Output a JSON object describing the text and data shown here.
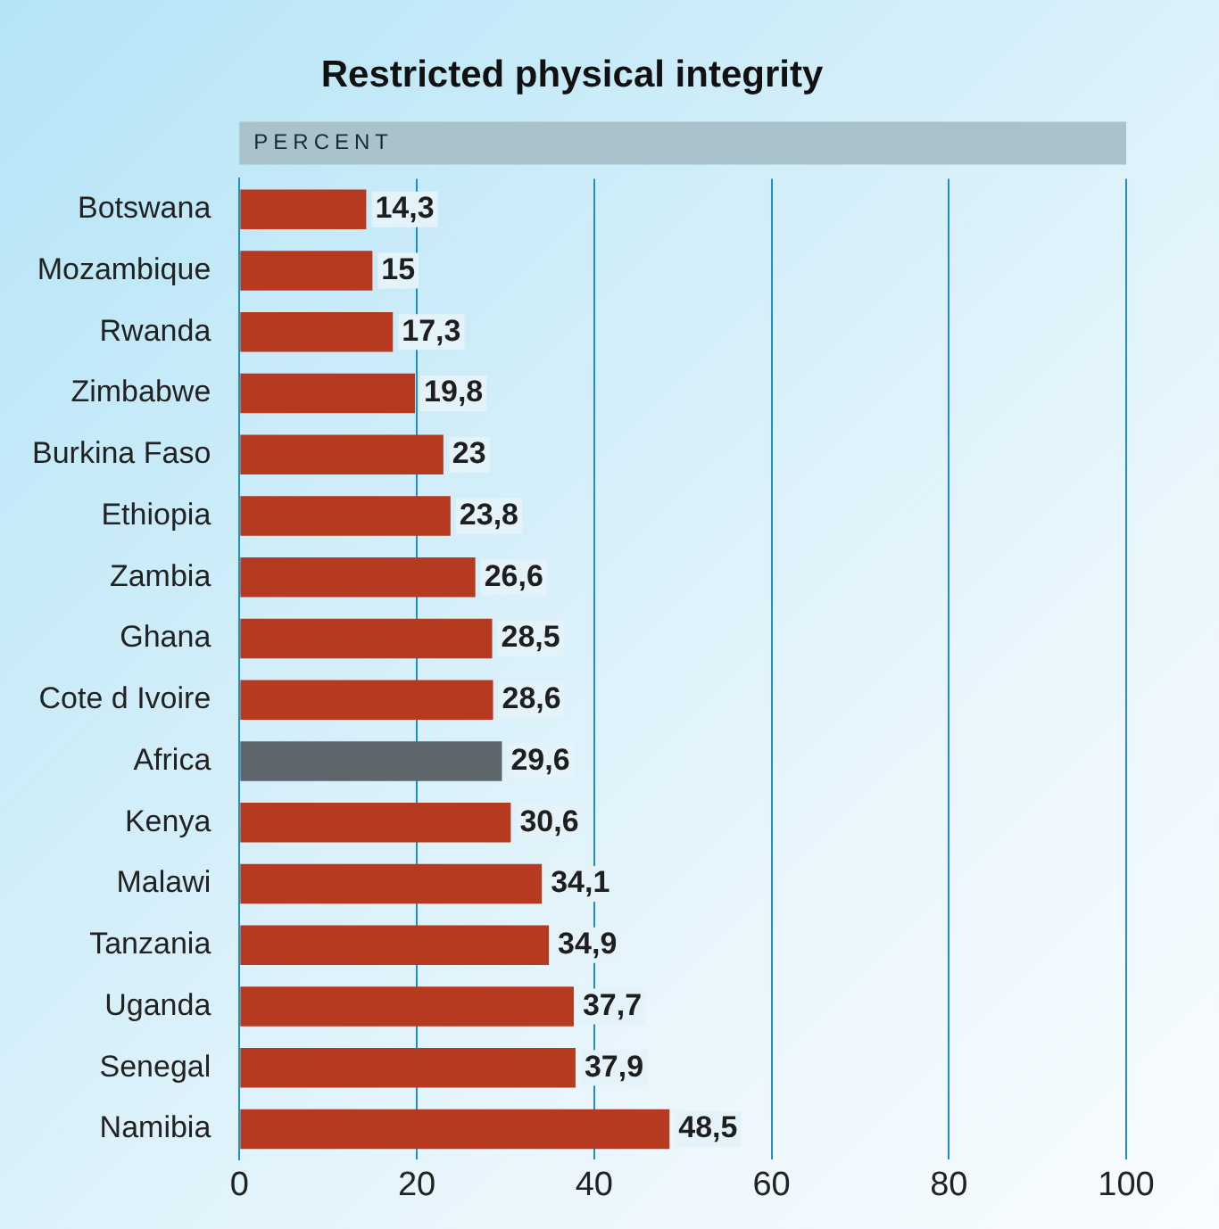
{
  "chart_data": {
    "type": "bar",
    "orientation": "horizontal",
    "title": "Restricted physical integrity",
    "xlabel": "PERCENT",
    "categories": [
      "Botswana",
      "Mozambique",
      "Rwanda",
      "Zimbabwe",
      "Burkina Faso",
      "Ethiopia",
      "Zambia",
      "Ghana",
      "Cote d Ivoire",
      "Africa",
      "Kenya",
      "Malawi",
      "Tanzania",
      "Uganda",
      "Senegal",
      "Namibia"
    ],
    "values": [
      14.3,
      15,
      17.3,
      19.8,
      23,
      23.8,
      26.6,
      28.5,
      28.6,
      29.6,
      30.6,
      34.1,
      34.9,
      37.7,
      37.9,
      48.5
    ],
    "colors": [
      "#b53a1f",
      "#b53a1f",
      "#b53a1f",
      "#b53a1f",
      "#b53a1f",
      "#b53a1f",
      "#b53a1f",
      "#b53a1f",
      "#b53a1f",
      "#5d666b",
      "#b53a1f",
      "#b53a1f",
      "#b53a1f",
      "#b53a1f",
      "#b53a1f",
      "#b53a1f"
    ],
    "value_labels": [
      "14,3",
      "15",
      "17,3",
      "19,8",
      "23",
      "23,8",
      "26,6",
      "28,5",
      "28,6",
      "29,6",
      "30,6",
      "34,1",
      "34,9",
      "37,7",
      "37,9",
      "48,5"
    ],
    "xlim": [
      0,
      100
    ],
    "xticks": [
      0,
      20,
      40,
      60,
      80,
      100
    ],
    "grid": "x",
    "legend": false
  }
}
